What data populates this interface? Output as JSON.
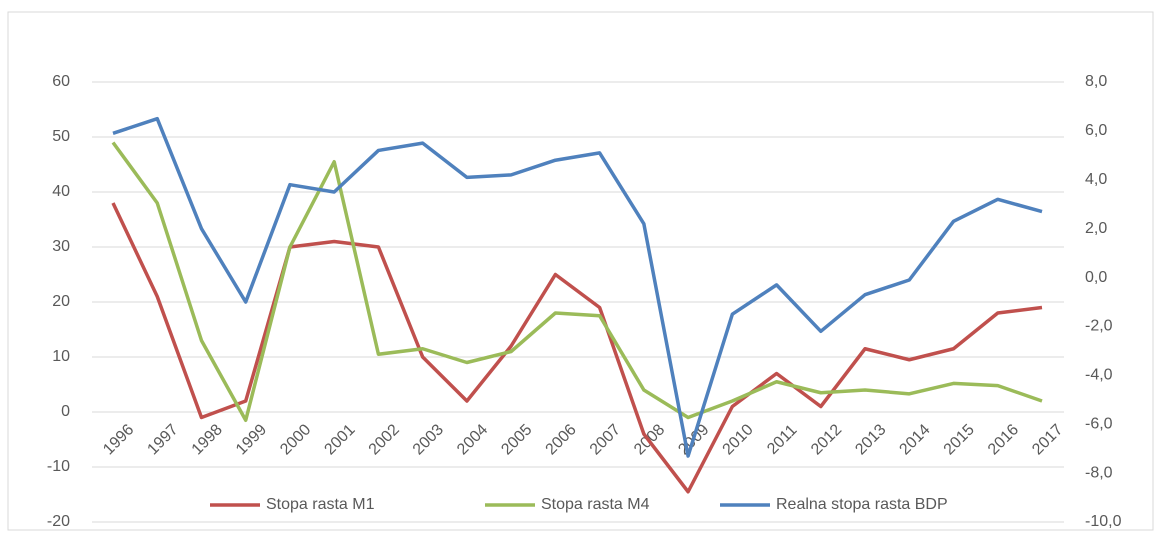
{
  "chart_data": {
    "type": "line",
    "categories": [
      "1996",
      "1997",
      "1998",
      "1999",
      "2000",
      "2001",
      "2002",
      "2003",
      "2004",
      "2005",
      "2006",
      "2007",
      "2008",
      "2009",
      "2010",
      "2011",
      "2012",
      "2013",
      "2014",
      "2015",
      "2016",
      "2017"
    ],
    "series": [
      {
        "name": "Stopa rasta M1",
        "color": "#c0504d",
        "values": [
          38,
          21,
          -1,
          2,
          30,
          31,
          30,
          10,
          2,
          12,
          25,
          19,
          -4,
          -14.5,
          1,
          7,
          1,
          11.5,
          9.5,
          11.5,
          18,
          19
        ]
      },
      {
        "name": "Stopa rasta M4",
        "color": "#9bbb59",
        "values": [
          49,
          38,
          13,
          -1.5,
          30,
          45.5,
          10.5,
          11.5,
          9,
          11,
          18,
          17.5,
          4,
          -1,
          2,
          5.5,
          3.5,
          4,
          3.3,
          5.2,
          4.8,
          2
        ]
      },
      {
        "name": "Realna stopa rasta BDP",
        "color": "#4f81bd",
        "axis": "y2",
        "values": [
          5.9,
          6.5,
          2.0,
          -1.0,
          3.8,
          3.5,
          5.2,
          5.5,
          4.1,
          4.2,
          4.8,
          5.1,
          2.2,
          -7.3,
          -1.5,
          -0.3,
          -2.2,
          -0.7,
          -0.1,
          2.3,
          3.2,
          2.7
        ]
      }
    ],
    "ylim": [
      -20,
      60
    ],
    "yticks": [
      -20,
      -10,
      0,
      10,
      20,
      30,
      40,
      50,
      60
    ],
    "y2lim": [
      -10,
      8
    ],
    "y2ticks": [
      {
        "value": -10,
        "label": "-10,0"
      },
      {
        "value": -8,
        "label": "-8,0"
      },
      {
        "value": -6,
        "label": "-6,0"
      },
      {
        "value": -4,
        "label": "-4,0"
      },
      {
        "value": -2,
        "label": "-2,0"
      },
      {
        "value": 0,
        "label": "0,0"
      },
      {
        "value": 2,
        "label": "2,0"
      },
      {
        "value": 4,
        "label": "4,0"
      },
      {
        "value": 6,
        "label": "6,0"
      },
      {
        "value": 8,
        "label": "8,0"
      }
    ],
    "grid": true,
    "legend": "bottom"
  }
}
